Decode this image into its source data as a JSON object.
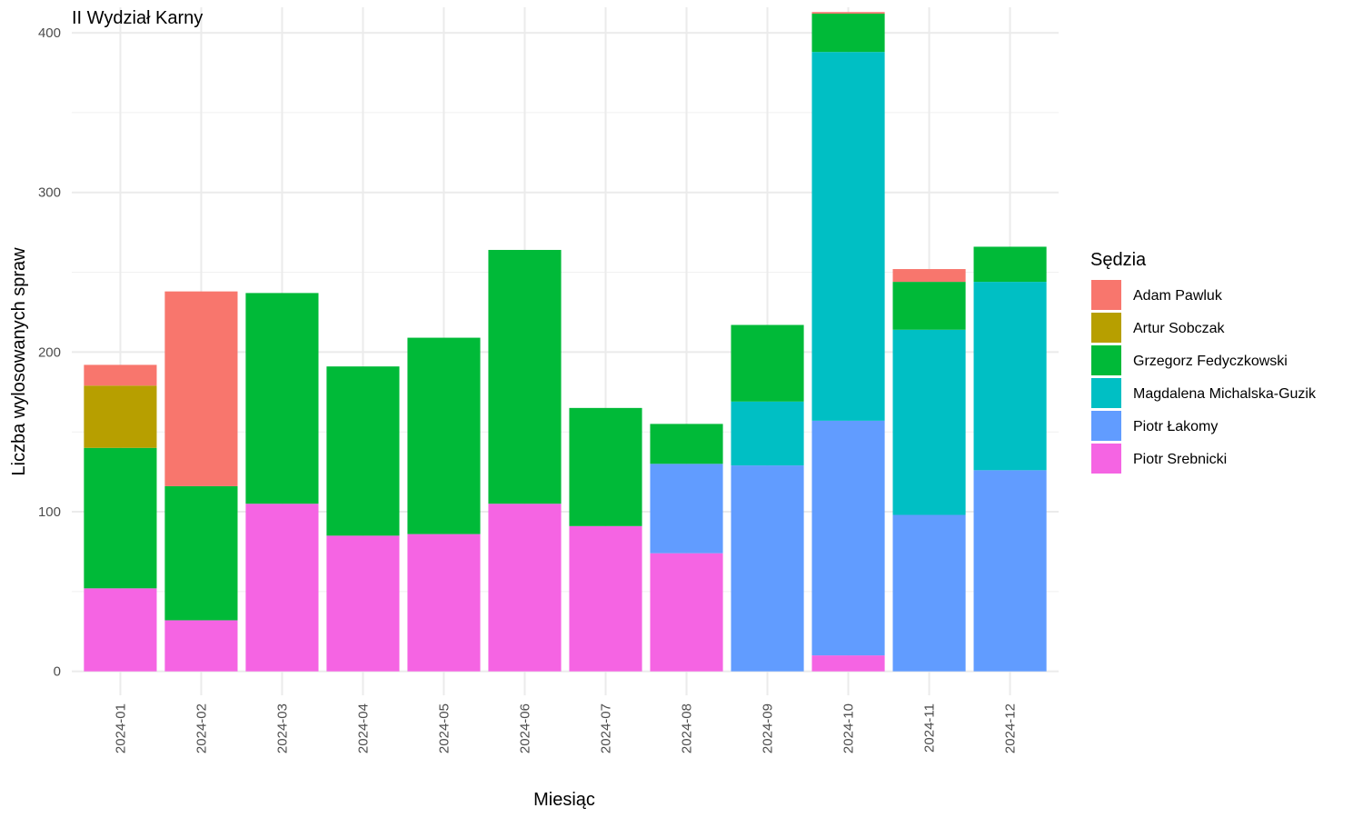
{
  "chart_data": {
    "type": "bar",
    "stacked": true,
    "title": "II Wydział Karny",
    "xlabel": "Miesiąc",
    "ylabel": "Liczba wylosowanych spraw",
    "ylim": [
      -15,
      416
    ],
    "yticks": [
      0,
      100,
      200,
      300,
      400
    ],
    "grid": true,
    "legend_position": "right",
    "legend_title": "Sędzia",
    "categories": [
      "2024-01",
      "2024-02",
      "2024-03",
      "2024-04",
      "2024-05",
      "2024-06",
      "2024-07",
      "2024-08",
      "2024-09",
      "2024-10",
      "2024-11",
      "2024-12"
    ],
    "series": [
      {
        "name": "Piotr Srebnicki",
        "color": "#F564E3",
        "values": [
          52,
          32,
          105,
          85,
          86,
          105,
          91,
          74,
          0,
          10,
          0,
          0
        ]
      },
      {
        "name": "Piotr Łakomy",
        "color": "#619CFF",
        "values": [
          0,
          0,
          0,
          0,
          0,
          0,
          0,
          56,
          129,
          147,
          98,
          126
        ]
      },
      {
        "name": "Magdalena Michalska-Guzik",
        "color": "#00BFC4",
        "values": [
          0,
          0,
          0,
          0,
          0,
          0,
          0,
          0,
          40,
          231,
          116,
          118
        ]
      },
      {
        "name": "Grzegorz Fedyczkowski",
        "color": "#00BA38",
        "values": [
          88,
          84,
          132,
          106,
          123,
          159,
          74,
          25,
          48,
          24,
          30,
          22
        ]
      },
      {
        "name": "Artur Sobczak",
        "color": "#B79F00",
        "values": [
          39,
          0,
          0,
          0,
          0,
          0,
          0,
          0,
          0,
          0,
          0,
          0
        ]
      },
      {
        "name": "Adam Pawluk",
        "color": "#F8766D",
        "values": [
          13,
          122,
          0,
          0,
          0,
          0,
          0,
          0,
          0,
          1,
          8,
          0
        ]
      }
    ],
    "legend_order": [
      "Adam Pawluk",
      "Artur Sobczak",
      "Grzegorz Fedyczkowski",
      "Magdalena Michalska-Guzik",
      "Piotr Łakomy",
      "Piotr Srebnicki"
    ]
  }
}
